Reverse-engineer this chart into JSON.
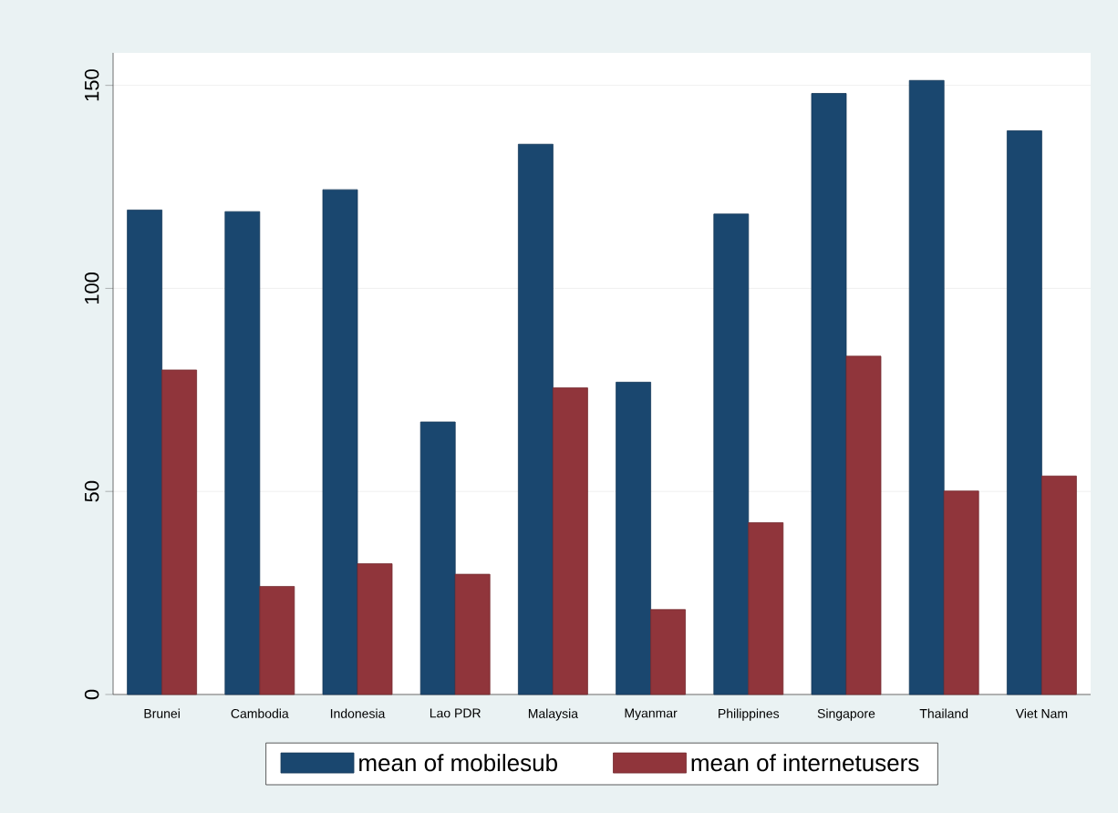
{
  "chart_data": {
    "type": "bar",
    "categories": [
      "Brunei",
      "Cambodia",
      "Indonesia",
      "Lao PDR",
      "Malaysia",
      "Myanmar",
      "Philippines",
      "Singapore",
      "Thailand",
      "Viet Nam"
    ],
    "series": [
      {
        "name": "mean of mobilesub",
        "color": "#1a476f",
        "values": [
          119.3,
          118.9,
          124.3,
          67.1,
          135.5,
          76.9,
          118.3,
          148.0,
          151.2,
          138.8
        ]
      },
      {
        "name": "mean of internetusers",
        "color": "#90353b",
        "values": [
          79.9,
          26.6,
          32.2,
          29.6,
          75.5,
          20.9,
          42.3,
          83.3,
          50.1,
          53.8
        ]
      }
    ],
    "ylim": [
      0,
      158
    ],
    "yticks": [
      0,
      50,
      100,
      150
    ],
    "grid": "y",
    "legend": "bottom"
  }
}
